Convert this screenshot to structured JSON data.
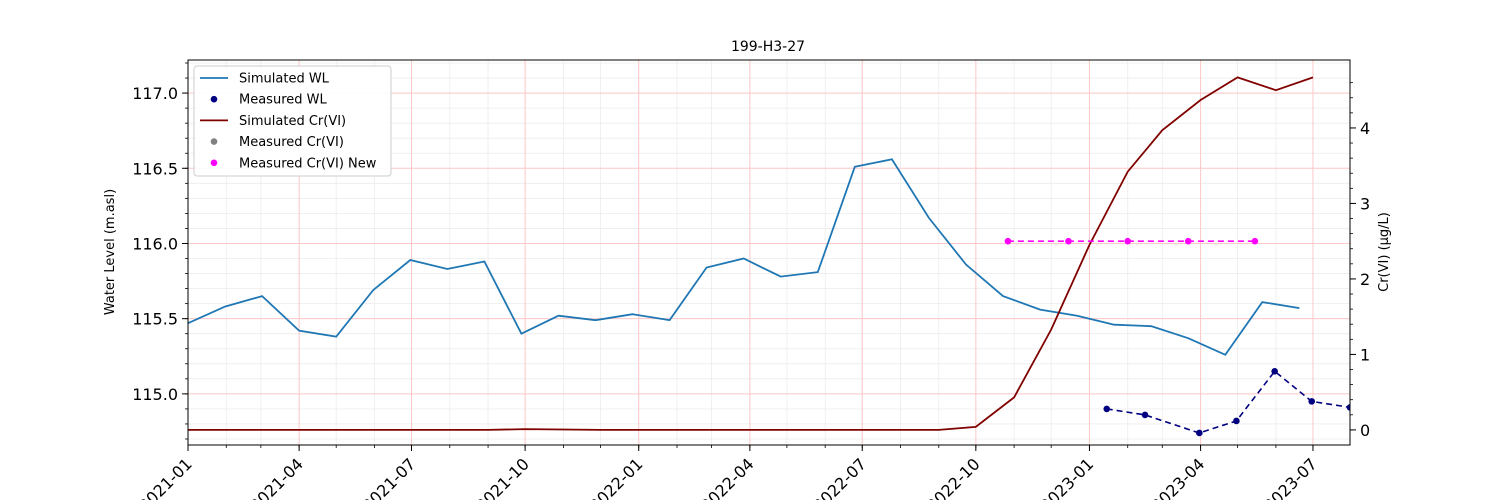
{
  "chart_data": {
    "type": "line",
    "title": "199-H3-27",
    "xlabel": "",
    "ylabel_left": "Water Level (m.asl)",
    "ylabel_right": "Cr(VI) (μg/L)",
    "xlim": [
      "2021-01-01",
      "2023-07-31"
    ],
    "ylim_left": [
      114.66,
      117.22
    ],
    "ylim_right": [
      -0.2,
      4.9
    ],
    "x_ticks": [
      "2021-01-01",
      "2021-04-01",
      "2021-07-01",
      "2021-10-01",
      "2022-01-01",
      "2022-04-01",
      "2022-07-01",
      "2022-10-01",
      "2023-01-01",
      "2023-04-01",
      "2023-07-01"
    ],
    "x_tick_labels": [
      "2021-01",
      "2021-04",
      "2021-07",
      "2021-10",
      "2022-01",
      "2022-04",
      "2022-07",
      "2022-10",
      "2023-01",
      "2023-04",
      "2023-07"
    ],
    "y_ticks_left": [
      115.0,
      115.5,
      116.0,
      116.5,
      117.0
    ],
    "y_tick_labels_left": [
      "115.0",
      "115.5",
      "116.0",
      "116.5",
      "117.0"
    ],
    "y_ticks_right": [
      0,
      1,
      2,
      3,
      4
    ],
    "y_tick_labels_right": [
      "0",
      "1",
      "2",
      "3",
      "4"
    ],
    "grid": true,
    "legend_position": "top-left",
    "series": [
      {
        "name": "Simulated WL",
        "axis": "left",
        "kind": "line",
        "color": "#1f77b4",
        "x": [
          "2021-01-01",
          "2021-01-31",
          "2021-03-02",
          "2021-04-01",
          "2021-05-01",
          "2021-05-31",
          "2021-06-30",
          "2021-07-30",
          "2021-08-29",
          "2021-09-28",
          "2021-10-28",
          "2021-11-27",
          "2021-12-27",
          "2022-01-26",
          "2022-02-25",
          "2022-03-27",
          "2022-04-26",
          "2022-05-26",
          "2022-06-25",
          "2022-07-25",
          "2022-08-24",
          "2022-09-23",
          "2022-10-23",
          "2022-11-22",
          "2022-12-22",
          "2023-01-21",
          "2023-02-20",
          "2023-03-22",
          "2023-04-21",
          "2023-05-21",
          "2023-06-20"
        ],
        "y": [
          115.47,
          115.58,
          115.65,
          115.42,
          115.38,
          115.69,
          115.89,
          115.83,
          115.88,
          115.4,
          115.52,
          115.49,
          115.53,
          115.49,
          115.84,
          115.9,
          115.78,
          115.81,
          116.51,
          116.56,
          116.17,
          115.86,
          115.65,
          115.56,
          115.52,
          115.46,
          115.45,
          115.37,
          115.26,
          115.61,
          115.57
        ]
      },
      {
        "name": "Measured WL",
        "axis": "left",
        "kind": "scatter-dashed",
        "color": "#000080",
        "x": [
          "2023-01-15",
          "2023-02-15",
          "2023-03-31",
          "2023-04-30",
          "2023-05-31",
          "2023-06-30",
          "2023-07-31"
        ],
        "y": [
          114.9,
          114.86,
          114.74,
          114.82,
          115.15,
          114.95,
          114.91
        ]
      },
      {
        "name": "Simulated Cr(VI)",
        "axis": "right",
        "kind": "line",
        "color": "#800000",
        "x": [
          "2021-01-01",
          "2021-03-01",
          "2021-06-01",
          "2021-09-01",
          "2021-10-01",
          "2021-12-01",
          "2022-03-01",
          "2022-06-01",
          "2022-09-01",
          "2022-10-01",
          "2022-11-01",
          "2022-12-01",
          "2023-01-01",
          "2023-02-01",
          "2023-03-01",
          "2023-04-01",
          "2023-05-01",
          "2023-06-01",
          "2023-07-01"
        ],
        "y": [
          0.0,
          0.0,
          0.0,
          0.0,
          0.01,
          0.0,
          0.0,
          0.0,
          0.0,
          0.04,
          0.43,
          1.33,
          2.45,
          3.42,
          3.97,
          4.37,
          4.67,
          4.5,
          4.67
        ]
      },
      {
        "name": "Measured Cr(VI)",
        "axis": "right",
        "kind": "scatter",
        "color": "#808080",
        "x": [],
        "y": []
      },
      {
        "name": "Measured Cr(VI) New",
        "axis": "right",
        "kind": "scatter-dashed",
        "color": "#ff00ff",
        "x": [
          "2022-10-27",
          "2022-12-15",
          "2023-02-01",
          "2023-03-22",
          "2023-05-15"
        ],
        "y": [
          2.5,
          2.5,
          2.5,
          2.5,
          2.5
        ]
      }
    ]
  }
}
